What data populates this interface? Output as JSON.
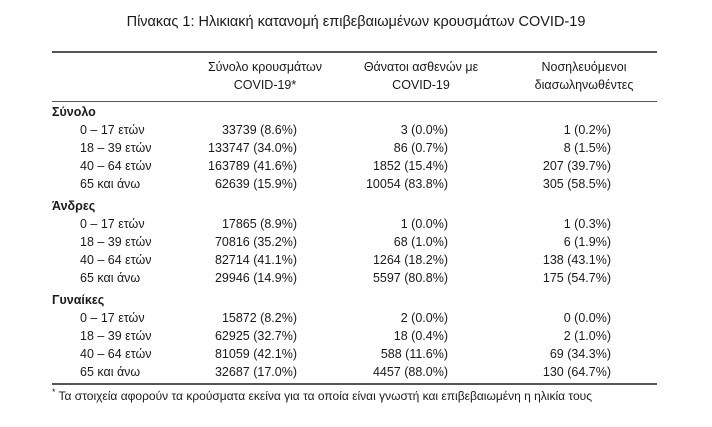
{
  "title": "Πίνακας 1: Ηλικιακή κατανομή επιβεβαιωμένων κρουσμάτων COVID-19",
  "columns": [
    {
      "line1": "Σύνολο κρουσμάτων",
      "line2": "COVID-19*"
    },
    {
      "line1": "Θάνατοι ασθενών με",
      "line2": "COVID-19"
    },
    {
      "line1": "Νοσηλευόμενοι",
      "line2": "διασωληνωθέντες"
    }
  ],
  "sections": [
    {
      "name": "Σύνολο",
      "rows": [
        {
          "age": "0 – 17 ετών",
          "cases": "33739 (8.6%)",
          "deaths": "3 (0.0%)",
          "intubated": "1 (0.2%)"
        },
        {
          "age": "18 – 39 ετών",
          "cases": "133747 (34.0%)",
          "deaths": "86 (0.7%)",
          "intubated": "8 (1.5%)"
        },
        {
          "age": "40 – 64 ετών",
          "cases": "163789 (41.6%)",
          "deaths": "1852 (15.4%)",
          "intubated": "207 (39.7%)"
        },
        {
          "age": "65 και άνω",
          "cases": "62639 (15.9%)",
          "deaths": "10054 (83.8%)",
          "intubated": "305 (58.5%)"
        }
      ]
    },
    {
      "name": "Άνδρες",
      "rows": [
        {
          "age": "0 – 17 ετών",
          "cases": "17865 (8.9%)",
          "deaths": "1 (0.0%)",
          "intubated": "1 (0.3%)"
        },
        {
          "age": "18 – 39 ετών",
          "cases": "70816 (35.2%)",
          "deaths": "68 (1.0%)",
          "intubated": "6 (1.9%)"
        },
        {
          "age": "40 – 64 ετών",
          "cases": "82714 (41.1%)",
          "deaths": "1264 (18.2%)",
          "intubated": "138 (43.1%)"
        },
        {
          "age": "65 και άνω",
          "cases": "29946 (14.9%)",
          "deaths": "5597 (80.8%)",
          "intubated": "175 (54.7%)"
        }
      ]
    },
    {
      "name": "Γυναίκες",
      "rows": [
        {
          "age": "0 – 17 ετών",
          "cases": "15872 (8.2%)",
          "deaths": "2 (0.0%)",
          "intubated": "0 (0.0%)"
        },
        {
          "age": "18 – 39 ετών",
          "cases": "62925 (32.7%)",
          "deaths": "18 (0.4%)",
          "intubated": "2 (1.0%)"
        },
        {
          "age": "40 – 64 ετών",
          "cases": "81059 (42.1%)",
          "deaths": "588 (11.6%)",
          "intubated": "69 (34.3%)"
        },
        {
          "age": "65 και άνω",
          "cases": "32687 (17.0%)",
          "deaths": "4457 (88.0%)",
          "intubated": "130 (64.7%)"
        }
      ]
    }
  ],
  "footnote": {
    "marker": "*",
    "text": "Τα στοιχεία αφορούν τα κρούσματα εκείνα για τα οποία είναι γνωστή και επιβεβαιωμένη η ηλικία τους"
  }
}
